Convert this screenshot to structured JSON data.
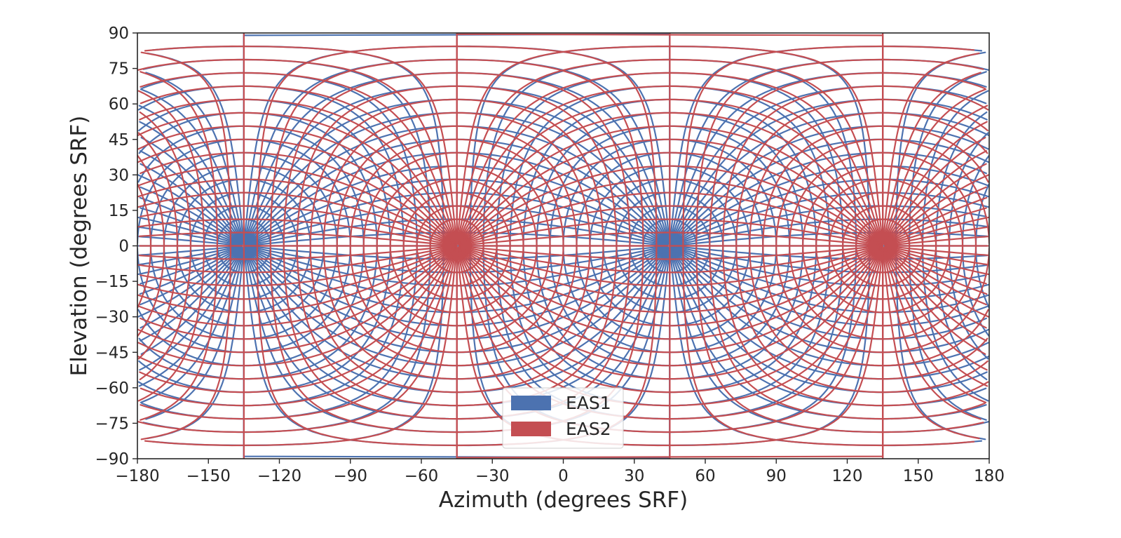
{
  "chart_data": {
    "type": "line",
    "title": "",
    "xlabel": "Azimuth (degrees SRF)",
    "ylabel": "Elevation (degrees SRF)",
    "xlim": [
      -180,
      180
    ],
    "ylim": [
      -90,
      90
    ],
    "xticks": [
      -180,
      -150,
      -120,
      -90,
      -60,
      -30,
      0,
      30,
      60,
      90,
      120,
      150,
      180
    ],
    "yticks": [
      -90,
      -75,
      -60,
      -45,
      -30,
      -15,
      0,
      15,
      30,
      45,
      60,
      75,
      90
    ],
    "xtick_labels": [
      "−180",
      "−150",
      "−120",
      "−90",
      "−60",
      "−30",
      "0",
      "30",
      "60",
      "90",
      "120",
      "150",
      "180"
    ],
    "ytick_labels": [
      "−90",
      "−75",
      "−60",
      "−45",
      "−30",
      "−15",
      "0",
      "15",
      "30",
      "45",
      "60",
      "75",
      "90"
    ],
    "grid": false,
    "legend_position": "bottom-center",
    "series": [
      {
        "name": "EAS1",
        "color": "#4c72b0",
        "boresight_azimuths": [
          -45,
          135
        ],
        "pole_azimuths": [
          45,
          -135
        ],
        "grid_step_deg": 5.625,
        "max_off_boresight_deg": 90
      },
      {
        "name": "EAS2",
        "color": "#c44e52",
        "boresight_azimuths": [
          45,
          -135
        ],
        "pole_azimuths": [
          -45,
          135
        ],
        "grid_step_deg": 5.625,
        "max_off_boresight_deg": 90
      }
    ]
  }
}
